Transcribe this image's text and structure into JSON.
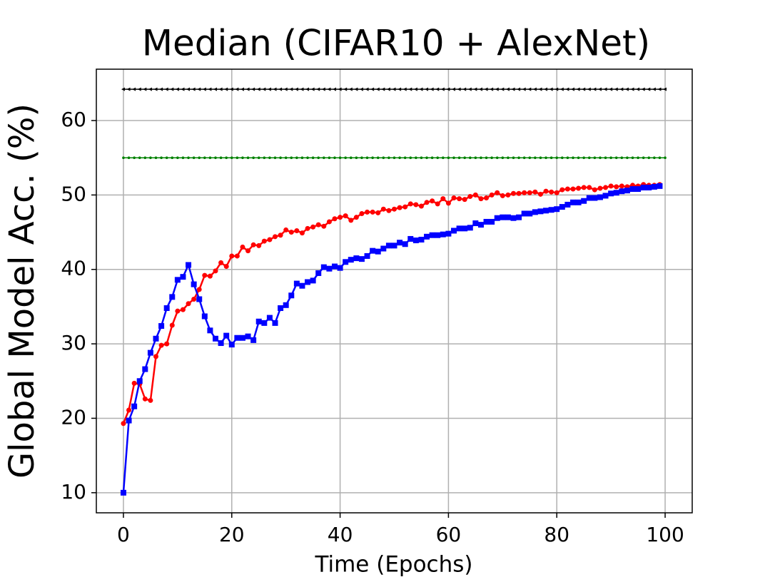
{
  "chart_data": {
    "type": "line",
    "title": "Median (CIFAR10 + AlexNet)",
    "x_label": "Time (Epochs)",
    "y_label": "Global Model Acc. (%)",
    "x": [
      0,
      1,
      2,
      3,
      4,
      5,
      6,
      7,
      8,
      9,
      10,
      11,
      12,
      13,
      14,
      15,
      16,
      17,
      18,
      19,
      20,
      21,
      22,
      23,
      24,
      25,
      26,
      27,
      28,
      29,
      30,
      31,
      32,
      33,
      34,
      35,
      36,
      37,
      38,
      39,
      40,
      41,
      42,
      43,
      44,
      45,
      46,
      47,
      48,
      49,
      50,
      51,
      52,
      53,
      54,
      55,
      56,
      57,
      58,
      59,
      60,
      61,
      62,
      63,
      64,
      65,
      66,
      67,
      68,
      69,
      70,
      71,
      72,
      73,
      74,
      75,
      76,
      77,
      78,
      79,
      80,
      81,
      82,
      83,
      84,
      85,
      86,
      87,
      88,
      89,
      90,
      91,
      92,
      93,
      94,
      95,
      96,
      97,
      98,
      99,
      100
    ],
    "series": [
      {
        "color": "#000000",
        "marker": "triangle-left",
        "values": [
          64.2,
          64.2,
          64.2,
          64.2,
          64.2,
          64.2,
          64.2,
          64.2,
          64.2,
          64.2,
          64.2,
          64.2,
          64.2,
          64.2,
          64.2,
          64.2,
          64.2,
          64.2,
          64.2,
          64.2,
          64.2,
          64.2,
          64.2,
          64.2,
          64.2,
          64.2,
          64.2,
          64.2,
          64.2,
          64.2,
          64.2,
          64.2,
          64.2,
          64.2,
          64.2,
          64.2,
          64.2,
          64.2,
          64.2,
          64.2,
          64.2,
          64.2,
          64.2,
          64.2,
          64.2,
          64.2,
          64.2,
          64.2,
          64.2,
          64.2,
          64.2,
          64.2,
          64.2,
          64.2,
          64.2,
          64.2,
          64.2,
          64.2,
          64.2,
          64.2,
          64.2,
          64.2,
          64.2,
          64.2,
          64.2,
          64.2,
          64.2,
          64.2,
          64.2,
          64.2,
          64.2,
          64.2,
          64.2,
          64.2,
          64.2,
          64.2,
          64.2,
          64.2,
          64.2,
          64.2,
          64.2,
          64.2,
          64.2,
          64.2,
          64.2,
          64.2,
          64.2,
          64.2,
          64.2,
          64.2,
          64.2,
          64.2,
          64.2,
          64.2,
          64.2,
          64.2,
          64.2,
          64.2,
          64.2,
          64.2,
          64.2
        ]
      },
      {
        "color": "#008000",
        "marker": "dot",
        "values": [
          55,
          55,
          55,
          55,
          55,
          55,
          55,
          55,
          55,
          55,
          55,
          55,
          55,
          55,
          55,
          55,
          55,
          55,
          55,
          55,
          55,
          55,
          55,
          55,
          55,
          55,
          55,
          55,
          55,
          55,
          55,
          55,
          55,
          55,
          55,
          55,
          55,
          55,
          55,
          55,
          55,
          55,
          55,
          55,
          55,
          55,
          55,
          55,
          55,
          55,
          55,
          55,
          55,
          55,
          55,
          55,
          55,
          55,
          55,
          55,
          55,
          55,
          55,
          55,
          55,
          55,
          55,
          55,
          55,
          55,
          55,
          55,
          55,
          55,
          55,
          55,
          55,
          55,
          55,
          55,
          55,
          55,
          55,
          55,
          55,
          55,
          55,
          55,
          55,
          55,
          55,
          55,
          55,
          55,
          55,
          55,
          55,
          55,
          55,
          55,
          55
        ]
      },
      {
        "color": "#ff0000",
        "marker": "circle",
        "values": [
          19.3,
          21.1,
          24.7,
          24.6,
          22.6,
          22.4,
          28.3,
          29.8,
          30,
          32.5,
          34.4,
          34.6,
          35.4,
          36,
          37.3,
          39.2,
          39.1,
          39.8,
          40.9,
          40.4,
          41.8,
          41.8,
          43,
          42.5,
          43.3,
          43.2,
          43.8,
          44,
          44.4,
          44.6,
          45.3,
          45,
          45.2,
          44.9,
          45.5,
          45.7,
          46,
          45.8,
          46.4,
          46.8,
          47,
          47.2,
          46.6,
          47,
          47.5,
          47.7,
          47.7,
          47.6,
          48.1,
          47.9,
          48.1,
          48.3,
          48.4,
          48.8,
          48.7,
          48.5,
          49,
          49.2,
          48.8,
          49.5,
          48.9,
          49.6,
          49.5,
          49.4,
          49.8,
          50,
          49.5,
          49.6,
          50,
          50.3,
          49.9,
          50,
          50.2,
          50.2,
          50.3,
          50.3,
          50.4,
          50.1,
          50.5,
          50.4,
          50.3,
          50.7,
          50.8,
          50.8,
          50.9,
          51,
          51,
          50.7,
          50.9,
          51,
          51.2,
          51.1,
          51.2,
          51.1,
          51.3,
          51.2,
          51.4,
          51.3,
          51.3,
          51.4,
          null
        ]
      },
      {
        "color": "#0000ff",
        "marker": "square",
        "values": [
          10,
          19.7,
          21.6,
          25,
          26.6,
          28.8,
          30.7,
          32.4,
          34.8,
          36.3,
          38.6,
          39,
          40.6,
          38,
          36,
          33.7,
          31.8,
          30.7,
          30.1,
          31.1,
          29.9,
          30.8,
          30.8,
          31,
          30.5,
          33,
          32.8,
          33.5,
          32.8,
          34.8,
          35.2,
          36.5,
          38.1,
          37.8,
          38.3,
          38.5,
          39.5,
          40.3,
          40.1,
          40.4,
          40.2,
          41,
          41.3,
          41.5,
          41.4,
          41.8,
          42.5,
          42.4,
          42.8,
          43.2,
          43.2,
          43.6,
          43.4,
          44.1,
          43.9,
          44,
          44.4,
          44.6,
          44.6,
          44.7,
          44.8,
          45.2,
          45.5,
          45.5,
          45.6,
          46.2,
          46,
          46.4,
          46.4,
          46.9,
          47,
          47,
          46.9,
          47,
          47.5,
          47.5,
          47.7,
          47.8,
          47.9,
          48,
          48.1,
          48.4,
          48.7,
          49,
          49,
          49.2,
          49.6,
          49.6,
          49.7,
          49.9,
          50.2,
          50.3,
          50.5,
          50.6,
          50.8,
          50.8,
          51,
          51,
          51.1,
          51.2,
          null
        ]
      }
    ],
    "xlim": [
      -5,
      105
    ],
    "xticks": [
      0,
      20,
      40,
      60,
      80,
      100
    ],
    "ylim": [
      7.3,
      66.9
    ],
    "yticks": [
      10,
      20,
      30,
      40,
      50,
      60
    ],
    "grid": true
  }
}
